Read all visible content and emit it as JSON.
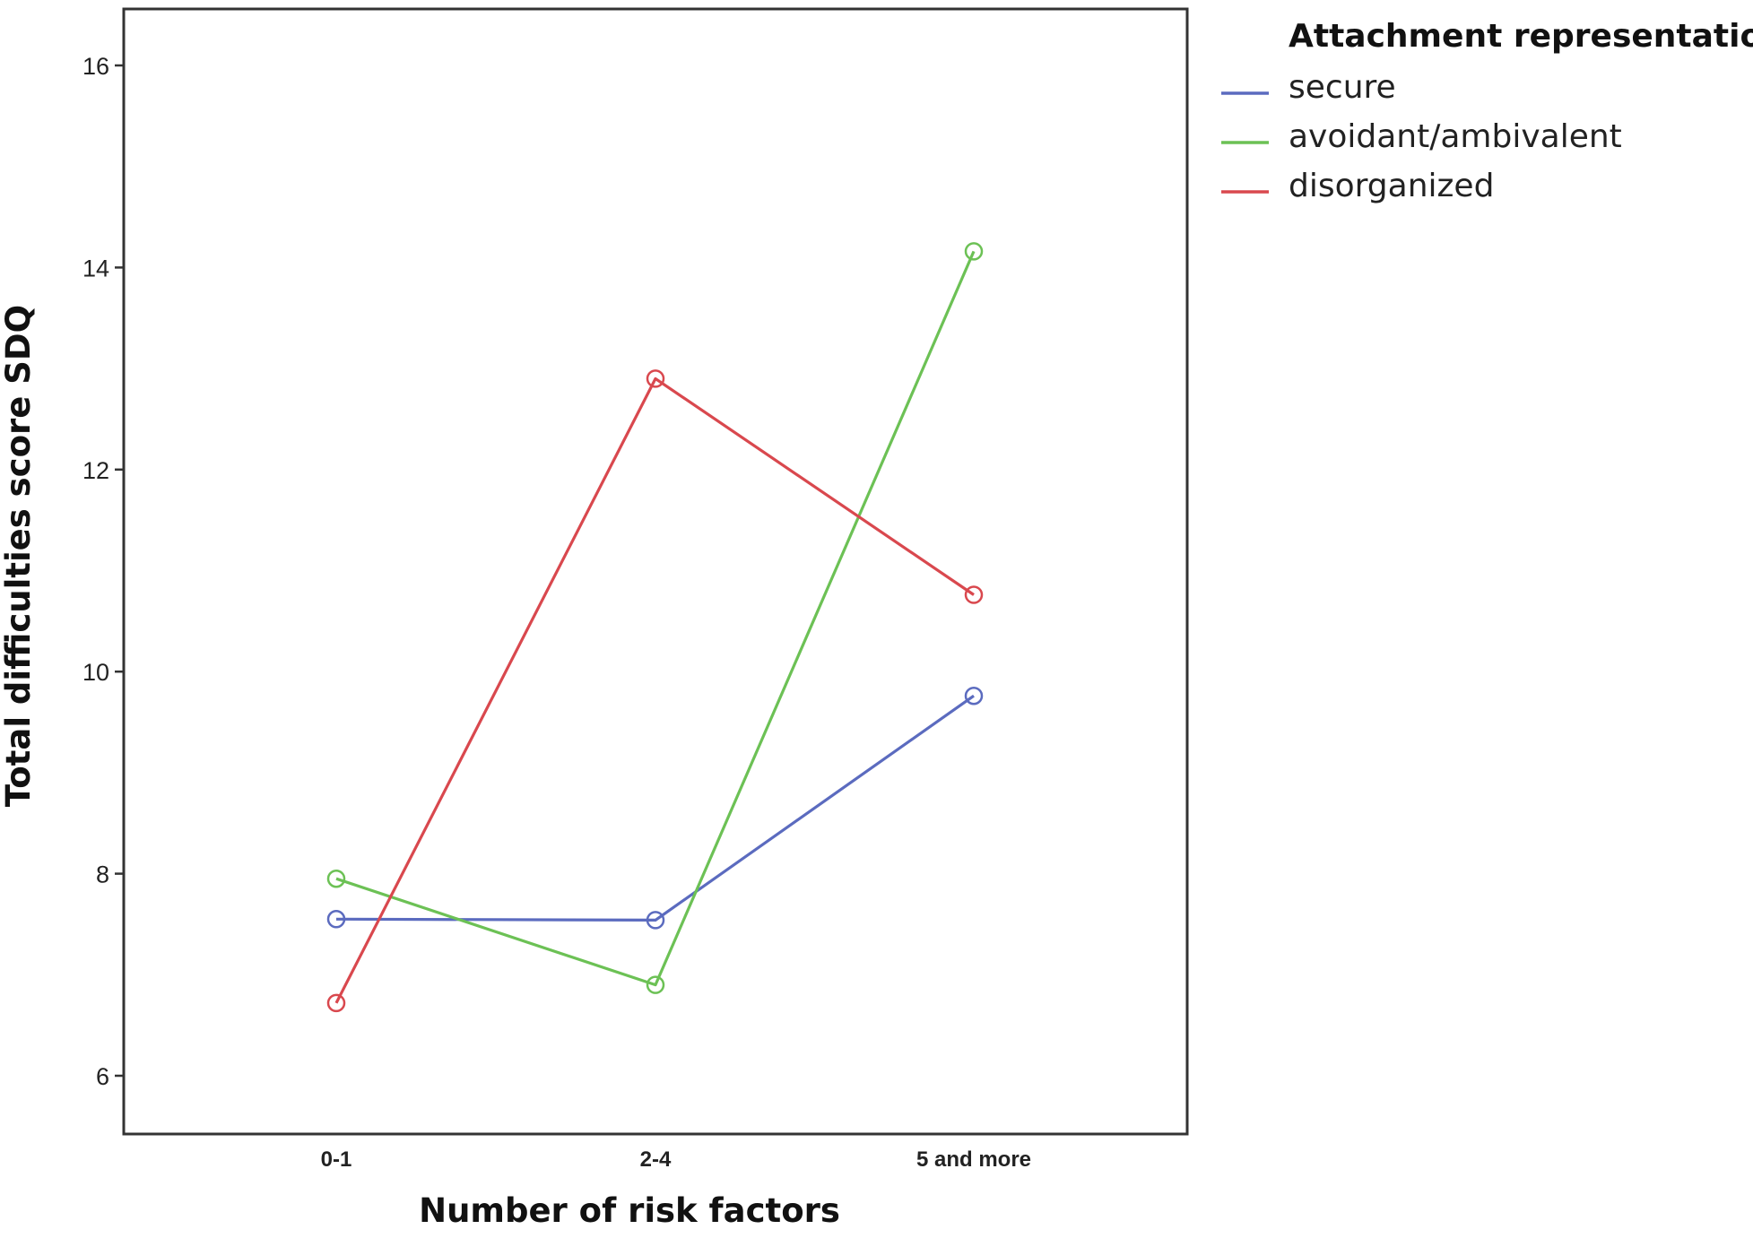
{
  "chart_data": {
    "type": "line",
    "title": "",
    "xlabel": "Number of risk factors",
    "ylabel": "Total difficulties score SDQ",
    "categories": [
      "0-1",
      "2-4",
      "5 and more"
    ],
    "ylim": [
      5.45,
      16.6
    ],
    "yticks": [
      6,
      8,
      10,
      12,
      14,
      16
    ],
    "grid": false,
    "markers": "open-circle",
    "legend": {
      "title": "Attachment representation",
      "placement": "top-right outside plot"
    },
    "series": [
      {
        "name": "secure",
        "color": "#5B6BBF",
        "values": [
          7.55,
          7.54,
          9.76
        ]
      },
      {
        "name": "avoidant/ambivalent",
        "color": "#6CC155",
        "values": [
          7.95,
          6.9,
          14.16
        ]
      },
      {
        "name": "disorganized",
        "color": "#D9484E",
        "values": [
          6.72,
          12.9,
          10.76
        ]
      }
    ]
  }
}
